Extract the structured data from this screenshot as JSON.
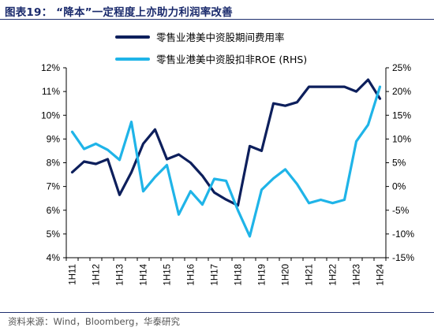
{
  "figure": {
    "title": "图表19：  “降本”一定程度上亦助力利润率改善",
    "source": "资料来源：Wind，Bloomberg，华泰研究"
  },
  "chart_data": {
    "type": "line",
    "x": [
      "1H11",
      "2H11",
      "1H12",
      "2H12",
      "1H13",
      "2H13",
      "1H14",
      "2H14",
      "1H15",
      "2H15",
      "1H16",
      "2H16",
      "1H17",
      "2H17",
      "1H18",
      "2H18",
      "1H19",
      "2H19",
      "1H20",
      "2H20",
      "1H21",
      "2H21",
      "1H22",
      "2H22",
      "1H23",
      "2H23",
      "1H24"
    ],
    "xtick_labels": [
      "1H11",
      "1H12",
      "1H13",
      "1H14",
      "1H15",
      "1H16",
      "1H17",
      "1H18",
      "1H19",
      "1H20",
      "1H21",
      "1H22",
      "1H23",
      "1H24"
    ],
    "y_left": {
      "range": [
        4,
        12
      ],
      "ticks": [
        "4%",
        "5%",
        "6%",
        "7%",
        "8%",
        "9%",
        "10%",
        "11%",
        "12%"
      ]
    },
    "y_right": {
      "range": [
        -15,
        25
      ],
      "ticks": [
        "-15%",
        "-10%",
        "-5%",
        "0%",
        "5%",
        "10%",
        "15%",
        "20%",
        "25%"
      ]
    },
    "grid": false,
    "legend_position": "top-center",
    "series": [
      {
        "name": "零售业港美中资股期间费用率",
        "axis": "left",
        "color": "#0d1f5c",
        "values": [
          7.6,
          8.05,
          7.95,
          8.15,
          6.65,
          7.6,
          8.8,
          9.4,
          8.15,
          8.35,
          8.0,
          7.45,
          6.75,
          6.45,
          6.2,
          8.7,
          8.5,
          10.5,
          10.4,
          10.55,
          11.2,
          11.2,
          11.2,
          11.2,
          11.0,
          11.5,
          10.7
        ]
      },
      {
        "name": "零售业港美中资股扣非ROE (RHS)",
        "axis": "right",
        "color": "#1fb4e8",
        "values": [
          11.5,
          7.9,
          9.0,
          7.7,
          5.6,
          13.6,
          -1.0,
          2.0,
          4.5,
          -5.9,
          -1.0,
          -3.8,
          1.6,
          1.2,
          -5.0,
          -10.5,
          -0.7,
          1.7,
          3.6,
          0.5,
          -3.5,
          -2.8,
          -3.5,
          -2.8,
          9.5,
          13.0,
          21.0
        ]
      }
    ]
  }
}
